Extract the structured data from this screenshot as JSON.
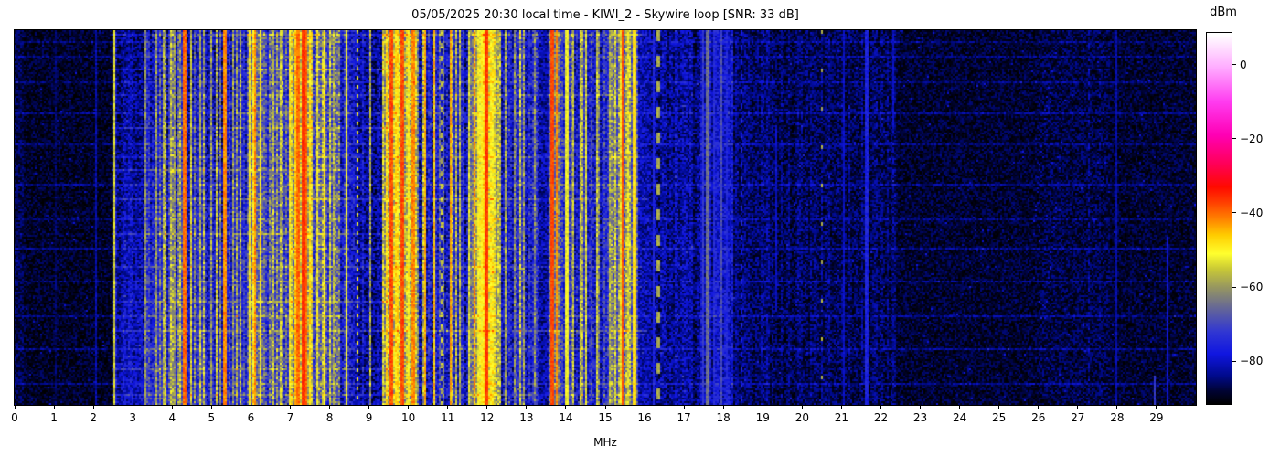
{
  "title": "05/05/2025 20:30 local time - KIWI_2 - Skywire loop [SNR: 33 dB]",
  "x_axis": {
    "label": "MHz",
    "ticks": [
      "0",
      "1",
      "2",
      "3",
      "4",
      "5",
      "6",
      "7",
      "8",
      "9",
      "10",
      "11",
      "12",
      "13",
      "14",
      "15",
      "16",
      "17",
      "18",
      "19",
      "20",
      "21",
      "22",
      "23",
      "24",
      "25",
      "26",
      "27",
      "28",
      "29"
    ]
  },
  "colorbar": {
    "label": "dBm",
    "vmin": -91.5,
    "vmax": 8.5,
    "ticks": [
      {
        "label": "0",
        "value": 0
      },
      {
        "label": "−20",
        "value": -20
      },
      {
        "label": "−40",
        "value": -40
      },
      {
        "label": "−60",
        "value": -60
      },
      {
        "label": "−80",
        "value": -80
      }
    ]
  },
  "chart_data": {
    "type": "heatmap",
    "subtype": "radio-spectrogram-waterfall",
    "x_range_mhz": [
      0,
      30
    ],
    "x_tick_step_mhz": 1,
    "value_unit": "dBm",
    "value_range_dbm": [
      -91.5,
      8.5
    ],
    "noise_floor_dbm": -90,
    "render_seed": 20250505,
    "colormap_stops": [
      [
        -92,
        "#000000"
      ],
      [
        -88,
        "#000333"
      ],
      [
        -84,
        "#000a8a"
      ],
      [
        -78,
        "#1016e0"
      ],
      [
        -72,
        "#3137d2"
      ],
      [
        -66,
        "#62649a"
      ],
      [
        -60,
        "#97975f"
      ],
      [
        -55,
        "#caca35"
      ],
      [
        -51,
        "#ffff2e"
      ],
      [
        -46,
        "#ffcc00"
      ],
      [
        -42,
        "#ff8800"
      ],
      [
        -37,
        "#ff3c00"
      ],
      [
        -33,
        "#ff0a00"
      ],
      [
        -27,
        "#ff0055"
      ],
      [
        -19,
        "#ff00b4"
      ],
      [
        -10,
        "#ff3cf0"
      ],
      [
        -1,
        "#ffaaff"
      ],
      [
        8,
        "#ffffff"
      ]
    ],
    "bands": [
      {
        "f1": 0.0,
        "f2": 0.25,
        "base": -87,
        "cv": 4
      },
      {
        "f1": 0.25,
        "f2": 2.5,
        "base": -89,
        "cv": 4
      },
      {
        "f1": 2.55,
        "f2": 3.3,
        "base": -83,
        "cv": 6,
        "colv": 3,
        "grow": 5
      },
      {
        "f1": 3.3,
        "f2": 4.6,
        "base": -77,
        "cv": 8,
        "colv": 5,
        "yp": 0.22,
        "grow": 7
      },
      {
        "f1": 4.6,
        "f2": 5.3,
        "base": -79,
        "cv": 8,
        "colv": 5,
        "yp": 0.15,
        "grow": 5
      },
      {
        "f1": 5.3,
        "f2": 5.9,
        "base": -77,
        "cv": 8,
        "colv": 5,
        "yp": 0.2,
        "grow": 4
      },
      {
        "f1": 5.9,
        "f2": 6.35,
        "base": -63,
        "cv": 8,
        "colv": 5
      },
      {
        "f1": 6.35,
        "f2": 6.95,
        "base": -73,
        "cv": 9,
        "colv": 6,
        "yp": 0.3
      },
      {
        "f1": 6.95,
        "f2": 7.55,
        "base": -58,
        "cv": 8,
        "colv": 5
      },
      {
        "f1": 7.15,
        "f2": 7.45,
        "base": -51,
        "cv": 7,
        "colv": 4
      },
      {
        "f1": 7.55,
        "f2": 8.25,
        "base": -70,
        "cv": 9,
        "colv": 7,
        "yp": 0.35
      },
      {
        "f1": 8.25,
        "f2": 8.6,
        "base": -76,
        "cv": 8,
        "colv": 5,
        "yp": 0.2
      },
      {
        "f1": 8.6,
        "f2": 9.35,
        "base": -81,
        "cv": 7,
        "colv": 4,
        "yp": 0.1
      },
      {
        "f1": 9.35,
        "f2": 10.2,
        "base": -57,
        "cv": 8,
        "colv": 5
      },
      {
        "f1": 10.2,
        "f2": 11.5,
        "base": -78,
        "cv": 8,
        "colv": 5,
        "yp": 0.17
      },
      {
        "f1": 11.5,
        "f2": 12.35,
        "base": -63,
        "cv": 7,
        "colv": 4,
        "halo": {
          "f0": 12.02,
          "sig": 0.2,
          "amp": 10
        }
      },
      {
        "f1": 12.35,
        "f2": 13.35,
        "base": -77,
        "cv": 8,
        "colv": 5,
        "yp": 0.15
      },
      {
        "f1": 13.35,
        "f2": 13.55,
        "base": -82,
        "cv": 6
      },
      {
        "f1": 13.55,
        "f2": 13.85,
        "base": -64,
        "cv": 7,
        "colv": 4
      },
      {
        "f1": 13.85,
        "f2": 15.15,
        "base": -76,
        "cv": 8,
        "colv": 6,
        "yp": 0.24
      },
      {
        "f1": 15.15,
        "f2": 15.85,
        "base": -68,
        "cv": 8,
        "colv": 6,
        "yp": 0.3,
        "halo": {
          "f0": 15.55,
          "sig": 0.22,
          "amp": 5
        }
      },
      {
        "f1": 15.85,
        "f2": 16.1,
        "base": -81,
        "cv": 6
      },
      {
        "f1": 16.1,
        "f2": 17.35,
        "base": -83,
        "cv": 6,
        "colv": 3
      },
      {
        "f1": 17.35,
        "f2": 18.25,
        "base": -80,
        "cv": 6,
        "colv": 3
      },
      {
        "f1": 18.25,
        "f2": 19.2,
        "base": -85,
        "cv": 5,
        "colv": 2
      },
      {
        "f1": 19.2,
        "f2": 22.4,
        "base": -86,
        "cv": 5,
        "colv": 2
      },
      {
        "f1": 22.4,
        "f2": 26.0,
        "base": -88.5,
        "cv": 4
      },
      {
        "f1": 26.0,
        "f2": 27.8,
        "base": -87.5,
        "cv": 4.5
      },
      {
        "f1": 27.8,
        "f2": 30.0,
        "base": -88.5,
        "cv": 4
      }
    ],
    "carriers": [
      {
        "f": 1.05,
        "db": -86,
        "w": 1,
        "jit": 3
      },
      {
        "f": 2.05,
        "db": -82,
        "w": 1,
        "jit": 3
      },
      {
        "f": 2.52,
        "db": -54,
        "w": 1,
        "jit": 4
      },
      {
        "f": 3.33,
        "db": -62,
        "w": 1,
        "jit": 6
      },
      {
        "f": 3.62,
        "db": -60,
        "w": 1,
        "jit": 6
      },
      {
        "f": 3.8,
        "db": -58,
        "w": 1,
        "jit": 6
      },
      {
        "f": 3.95,
        "db": -56,
        "w": 1,
        "jit": 7
      },
      {
        "f": 4.08,
        "db": -60,
        "w": 1,
        "jit": 6
      },
      {
        "f": 4.3,
        "db": -40,
        "w": 2,
        "jit": 3
      },
      {
        "f": 4.47,
        "db": -58,
        "w": 1,
        "jit": 6
      },
      {
        "f": 4.72,
        "db": -62,
        "w": 1,
        "jit": 7
      },
      {
        "f": 5.0,
        "db": -60,
        "w": 1,
        "jit": 7
      },
      {
        "f": 5.34,
        "db": -42,
        "w": 2,
        "jit": 3
      },
      {
        "f": 5.55,
        "db": -60,
        "w": 1,
        "jit": 7
      },
      {
        "f": 5.73,
        "db": -58,
        "w": 1,
        "jit": 7
      },
      {
        "f": 5.95,
        "db": -50,
        "w": 1,
        "jit": 5
      },
      {
        "f": 6.07,
        "db": -48,
        "w": 1,
        "jit": 5
      },
      {
        "f": 6.13,
        "db": -42,
        "w": 1,
        "jit": 4
      },
      {
        "f": 6.25,
        "db": -50,
        "w": 1,
        "jit": 5
      },
      {
        "f": 6.55,
        "db": -58,
        "w": 1,
        "jit": 7
      },
      {
        "f": 6.77,
        "db": -56,
        "w": 1,
        "jit": 7
      },
      {
        "f": 7.0,
        "db": -50,
        "w": 1,
        "jit": 5
      },
      {
        "f": 7.12,
        "db": -46,
        "w": 1,
        "jit": 4
      },
      {
        "f": 7.22,
        "db": -40,
        "w": 2,
        "jit": 3
      },
      {
        "f": 7.33,
        "db": -36,
        "w": 2,
        "jit": 2
      },
      {
        "f": 7.42,
        "db": -40,
        "w": 1,
        "jit": 3
      },
      {
        "f": 7.52,
        "db": -48,
        "w": 1,
        "jit": 4
      },
      {
        "f": 7.7,
        "db": -54,
        "w": 1,
        "jit": 6
      },
      {
        "f": 7.85,
        "db": -50,
        "w": 1,
        "jit": 5
      },
      {
        "f": 8.0,
        "db": -56,
        "w": 1,
        "jit": 6
      },
      {
        "f": 8.1,
        "db": -58,
        "w": 1,
        "jit": 6
      },
      {
        "f": 8.45,
        "db": -52,
        "w": 1,
        "jit": 3
      },
      {
        "f": 8.72,
        "db": -52,
        "w": 1,
        "jit": 6,
        "dash": [
          2,
          3
        ]
      },
      {
        "f": 9.05,
        "db": -62,
        "w": 1,
        "jit": 7,
        "dash": [
          2,
          4
        ]
      },
      {
        "f": 9.45,
        "db": -48,
        "w": 1,
        "jit": 4
      },
      {
        "f": 9.57,
        "db": -38,
        "w": 2,
        "jit": 3
      },
      {
        "f": 9.7,
        "db": -48,
        "w": 2,
        "jit": 4
      },
      {
        "f": 9.84,
        "db": -38,
        "w": 2,
        "jit": 3
      },
      {
        "f": 10.0,
        "db": -50,
        "w": 1,
        "jit": 4
      },
      {
        "f": 10.12,
        "db": -42,
        "w": 2,
        "jit": 3
      },
      {
        "f": 10.43,
        "db": -44,
        "w": 1,
        "jit": 3
      },
      {
        "f": 10.68,
        "db": -46,
        "w": 1,
        "jit": 4
      },
      {
        "f": 10.85,
        "db": -56,
        "w": 1,
        "jit": 4,
        "dash": [
          3,
          4
        ]
      },
      {
        "f": 11.08,
        "db": -44,
        "w": 1,
        "jit": 3
      },
      {
        "f": 11.3,
        "db": -60,
        "w": 1,
        "jit": 7
      },
      {
        "f": 11.55,
        "db": -54,
        "w": 1,
        "jit": 5
      },
      {
        "f": 11.66,
        "db": -44,
        "w": 1,
        "jit": 5
      },
      {
        "f": 11.78,
        "db": -52,
        "w": 2,
        "jit": 4
      },
      {
        "f": 11.88,
        "db": -50,
        "w": 2,
        "jit": 3
      },
      {
        "f": 12.0,
        "db": -37,
        "w": 2,
        "jit": 2
      },
      {
        "f": 12.12,
        "db": -52,
        "w": 2,
        "jit": 4
      },
      {
        "f": 12.45,
        "db": -60,
        "w": 1,
        "jit": 7
      },
      {
        "f": 12.7,
        "db": -62,
        "w": 1,
        "jit": 7
      },
      {
        "f": 12.95,
        "db": -60,
        "w": 1,
        "jit": 7
      },
      {
        "f": 13.2,
        "db": -62,
        "w": 1,
        "jit": 7
      },
      {
        "f": 13.66,
        "db": -38,
        "w": 2,
        "jit": 2
      },
      {
        "f": 13.78,
        "db": -42,
        "w": 1,
        "jit": 3
      },
      {
        "f": 14.02,
        "db": -52,
        "w": 2,
        "jit": 3
      },
      {
        "f": 14.18,
        "db": -58,
        "w": 1,
        "jit": 6
      },
      {
        "f": 14.35,
        "db": -56,
        "w": 1,
        "jit": 6
      },
      {
        "f": 14.49,
        "db": -54,
        "w": 1,
        "jit": 4
      },
      {
        "f": 14.79,
        "db": -56,
        "w": 1,
        "jit": 5
      },
      {
        "f": 15.1,
        "db": -58,
        "w": 1,
        "jit": 6
      },
      {
        "f": 15.25,
        "db": -56,
        "w": 1,
        "jit": 6
      },
      {
        "f": 15.38,
        "db": -52,
        "w": 1,
        "jit": 5
      },
      {
        "f": 15.46,
        "db": -38,
        "w": 1,
        "jit": 2
      },
      {
        "f": 15.6,
        "db": -54,
        "w": 1,
        "jit": 5
      },
      {
        "f": 15.72,
        "db": -48,
        "w": 2,
        "jit": 2
      },
      {
        "f": 16.22,
        "db": -76,
        "w": 1,
        "jit": 3
      },
      {
        "f": 16.35,
        "db": -58,
        "w": 2,
        "jit": 2,
        "dash": [
          6,
          8
        ]
      },
      {
        "f": 17.5,
        "db": -72,
        "w": 1,
        "jit": 3
      },
      {
        "f": 17.62,
        "db": -65,
        "w": 2,
        "jit": 3
      },
      {
        "f": 17.78,
        "db": -74,
        "w": 1,
        "jit": 3
      },
      {
        "f": 17.95,
        "db": -69,
        "w": 1,
        "jit": 3
      },
      {
        "f": 18.1,
        "db": -75,
        "w": 1,
        "jit": 3
      },
      {
        "f": 18.48,
        "db": -76,
        "w": 1,
        "jit": 3,
        "dash": [
          3,
          5
        ]
      },
      {
        "f": 19.36,
        "db": -80,
        "w": 1,
        "jit": 2,
        "rows": [
          0.25,
          0.75
        ]
      },
      {
        "f": 20.52,
        "db": -57,
        "w": 1,
        "jit": 2,
        "dash": [
          2,
          19
        ]
      },
      {
        "f": 21.06,
        "db": -80,
        "w": 1,
        "jit": 2
      },
      {
        "f": 21.65,
        "db": -76,
        "w": 2,
        "jit": 3
      },
      {
        "f": 21.9,
        "db": -82,
        "w": 1,
        "jit": 2,
        "dash": [
          4,
          6
        ]
      },
      {
        "f": 22.3,
        "db": -80,
        "w": 1,
        "jit": 2,
        "rows": [
          0,
          0.25
        ]
      },
      {
        "f": 27.3,
        "db": -82,
        "w": 1,
        "jit": 3,
        "dash": [
          3,
          4
        ]
      },
      {
        "f": 27.55,
        "db": -83,
        "w": 1,
        "jit": 3,
        "dash": [
          2,
          5
        ]
      },
      {
        "f": 28.0,
        "db": -82,
        "w": 1,
        "jit": 2
      },
      {
        "f": 28.95,
        "db": -72,
        "w": 1,
        "jit": 2,
        "rows": [
          0.92,
          1
        ]
      },
      {
        "f": 29.3,
        "db": -79,
        "w": 1,
        "jit": 2,
        "rows": [
          0.55,
          1
        ]
      }
    ],
    "streak_rows": [
      [
        0.008,
        8,
        2.5,
        16
      ],
      [
        0.03,
        4,
        0,
        30
      ],
      [
        0.07,
        4,
        0,
        30
      ],
      [
        0.1,
        7,
        2.5,
        9.5
      ],
      [
        0.135,
        4,
        0,
        30
      ],
      [
        0.17,
        6,
        2.5,
        16
      ],
      [
        0.22,
        5,
        0,
        30
      ],
      [
        0.26,
        8,
        2.5,
        9.5
      ],
      [
        0.3,
        4,
        0,
        30
      ],
      [
        0.335,
        6,
        2.5,
        16
      ],
      [
        0.37,
        9,
        2.5,
        8.5
      ],
      [
        0.41,
        5,
        0,
        30
      ],
      [
        0.45,
        7,
        2.5,
        16
      ],
      [
        0.5,
        4,
        0,
        30
      ],
      [
        0.54,
        8,
        2.5,
        9.5
      ],
      [
        0.58,
        5,
        0,
        30
      ],
      [
        0.63,
        6,
        2.5,
        16
      ],
      [
        0.67,
        4,
        0,
        30
      ],
      [
        0.72,
        7,
        2.5,
        9.5
      ],
      [
        0.76,
        5,
        0,
        30
      ],
      [
        0.8,
        8,
        2.5,
        16
      ],
      [
        0.85,
        5,
        0,
        30
      ],
      [
        0.9,
        7,
        2.5,
        9.5
      ],
      [
        0.94,
        5,
        0,
        30
      ],
      [
        0.97,
        6,
        2.5,
        16
      ]
    ],
    "diagonal_traces": [
      {
        "f1": 26.45,
        "r1": 0.06,
        "f2": 25.95,
        "r2": 0.5
      },
      {
        "f1": 26.25,
        "r1": 0.14,
        "f2": 25.85,
        "r2": 0.58
      },
      {
        "f1": 26.6,
        "r1": 0.3,
        "f2": 26.15,
        "r2": 0.78
      }
    ]
  }
}
